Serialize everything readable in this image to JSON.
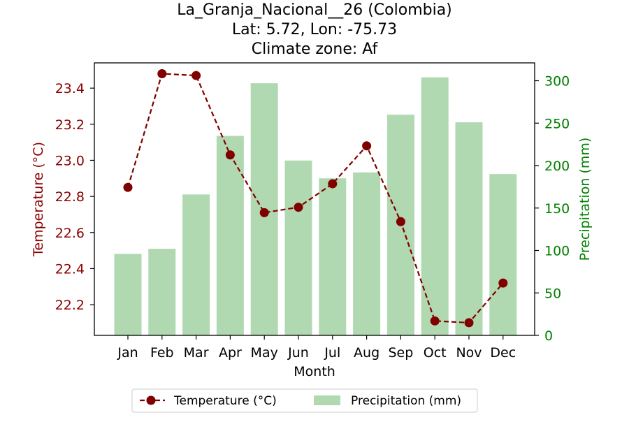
{
  "chart_data": {
    "type": "bar+line",
    "title_lines": [
      "La_Granja_Nacional__26 (Colombia)",
      "Lat: 5.72, Lon: -75.73",
      "Climate zone: Af"
    ],
    "xlabel": "Month",
    "ylabel_left": "Temperature (°C)",
    "ylabel_right": "Precipitation (mm)",
    "categories": [
      "Jan",
      "Feb",
      "Mar",
      "Apr",
      "May",
      "Jun",
      "Jul",
      "Aug",
      "Sep",
      "Oct",
      "Nov",
      "Dec"
    ],
    "temperature": [
      22.85,
      23.48,
      23.47,
      23.03,
      22.71,
      22.74,
      22.87,
      23.08,
      22.66,
      22.11,
      22.1,
      22.32
    ],
    "precipitation": [
      96,
      102,
      166,
      235,
      297,
      206,
      185,
      192,
      260,
      304,
      251,
      190
    ],
    "ylim_left": [
      22.03,
      23.54
    ],
    "ylim_right": [
      0,
      321
    ],
    "yticks_left": [
      "22.2",
      "22.4",
      "22.6",
      "22.8",
      "23.0",
      "23.2",
      "23.4"
    ],
    "yticks_right": [
      "0",
      "50",
      "100",
      "150",
      "200",
      "250",
      "300"
    ],
    "legend": {
      "temperature": "Temperature (°C)",
      "precipitation": "Precipitation (mm)",
      "placement": "bottom-center"
    },
    "colors": {
      "temperature": "#800000",
      "temperature_axis": "#8b0000",
      "precipitation": "#b1d9b1",
      "precipitation_axis": "#008000"
    }
  }
}
